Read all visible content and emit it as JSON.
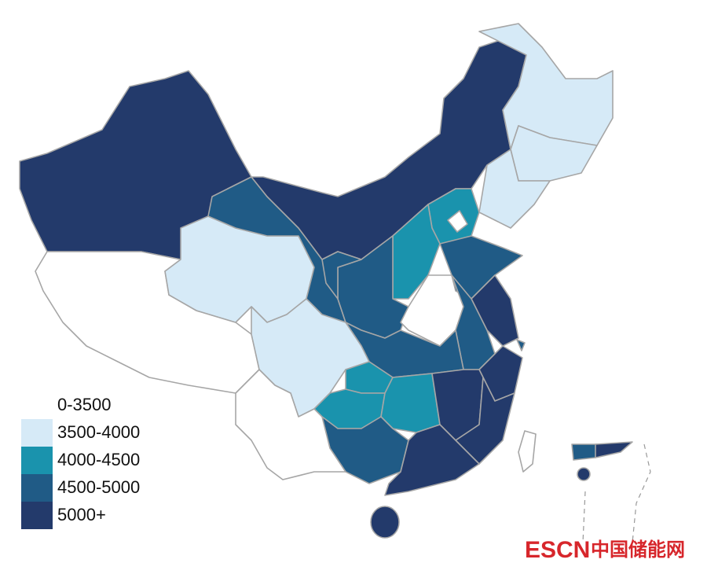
{
  "legend": {
    "items": [
      {
        "label": "0-3500",
        "color": "#ffffff"
      },
      {
        "label": "3500-4000",
        "color": "#d6eaf7"
      },
      {
        "label": "4000-4500",
        "color": "#1a93ad"
      },
      {
        "label": "4500-5000",
        "color": "#205b86"
      },
      {
        "label": "5000+",
        "color": "#233a6b"
      }
    ]
  },
  "watermark": {
    "brand": "ESCN",
    "site": "中国储能网"
  }
}
